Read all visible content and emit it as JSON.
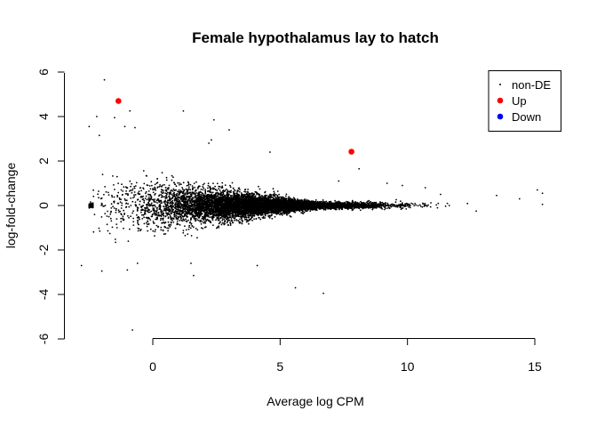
{
  "chart_data": {
    "type": "scatter",
    "title": "Female hypothalamus lay to hatch",
    "xlabel": "Average log CPM",
    "ylabel": "log-fold-change",
    "xlim": [
      -3.4,
      15.6
    ],
    "ylim": [
      -6.1,
      6.2
    ],
    "x_ticks": [
      0,
      5,
      10,
      15
    ],
    "y_ticks": [
      -6,
      -4,
      -2,
      0,
      2,
      4,
      6
    ],
    "x_tick_labels": [
      "0",
      "5",
      "10",
      "15"
    ],
    "y_tick_labels": [
      "-6",
      "-4",
      "-2",
      "0",
      "2",
      "4",
      "6"
    ],
    "legend": {
      "placement": "top-right",
      "entries": [
        {
          "label": "non-DE",
          "color": "#000000"
        },
        {
          "label": "Up",
          "color": "#ff0000"
        },
        {
          "label": "Down",
          "color": "#0000ff"
        }
      ]
    },
    "series": [
      {
        "name": "non-DE",
        "color": "#000000",
        "cloud": {
          "x_range": [
            -2.5,
            15.3
          ],
          "center_y": 0,
          "spread_at_low_x": 1.2,
          "spread_at_high_x": 0.12,
          "point_count": 9000
        },
        "points": [
          {
            "x": -1.9,
            "y": 5.65
          },
          {
            "x": -2.2,
            "y": 4.0
          },
          {
            "x": -0.9,
            "y": 4.25
          },
          {
            "x": 1.2,
            "y": 4.25
          },
          {
            "x": -1.5,
            "y": 3.95
          },
          {
            "x": 2.4,
            "y": 3.85
          },
          {
            "x": -2.5,
            "y": 3.55
          },
          {
            "x": -1.1,
            "y": 3.55
          },
          {
            "x": -0.7,
            "y": 3.5
          },
          {
            "x": 3.0,
            "y": 3.4
          },
          {
            "x": -2.1,
            "y": 3.15
          },
          {
            "x": 2.3,
            "y": 2.95
          },
          {
            "x": 2.2,
            "y": 2.8
          },
          {
            "x": 4.6,
            "y": 2.4
          },
          {
            "x": 8.1,
            "y": 1.65
          },
          {
            "x": 7.3,
            "y": 1.1
          },
          {
            "x": 9.2,
            "y": 1.0
          },
          {
            "x": 9.8,
            "y": 0.9
          },
          {
            "x": 10.7,
            "y": 0.8
          },
          {
            "x": 11.3,
            "y": 0.5
          },
          {
            "x": 12.7,
            "y": -0.25
          },
          {
            "x": 13.5,
            "y": 0.45
          },
          {
            "x": 14.4,
            "y": 0.3
          },
          {
            "x": 15.1,
            "y": 0.7
          },
          {
            "x": 15.3,
            "y": 0.55
          },
          {
            "x": 15.3,
            "y": 0.05
          },
          {
            "x": -2.8,
            "y": -2.7
          },
          {
            "x": -2.0,
            "y": -2.95
          },
          {
            "x": -1.0,
            "y": -2.9
          },
          {
            "x": -0.6,
            "y": -2.6
          },
          {
            "x": 1.5,
            "y": -2.6
          },
          {
            "x": 1.6,
            "y": -3.15
          },
          {
            "x": 4.1,
            "y": -2.7
          },
          {
            "x": 5.6,
            "y": -3.7
          },
          {
            "x": 6.7,
            "y": -3.95
          },
          {
            "x": -0.8,
            "y": -5.6
          }
        ]
      },
      {
        "name": "Up",
        "color": "#ff0000",
        "points": [
          {
            "x": -1.35,
            "y": 4.7
          },
          {
            "x": 7.8,
            "y": 2.42
          }
        ]
      },
      {
        "name": "Down",
        "color": "#0000ff",
        "points": []
      }
    ]
  }
}
